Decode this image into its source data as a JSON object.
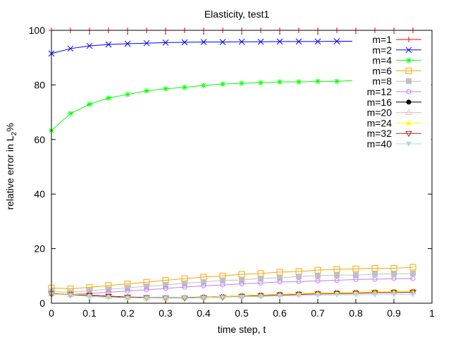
{
  "chart_data": {
    "type": "line",
    "title": "Elasticity, test1",
    "xlabel": "time step, t",
    "ylabel": "relative error in L",
    "ylabel_subscript": "2",
    "ylabel_suffix": "%",
    "xlim": [
      0,
      1
    ],
    "ylim": [
      0,
      100
    ],
    "xticks": [
      "0",
      "0.1",
      "0.2",
      "0.3",
      "0.4",
      "0.5",
      "0.6",
      "0.7",
      "0.8",
      "0.9",
      "1"
    ],
    "yticks": [
      "0",
      "20",
      "40",
      "60",
      "80",
      "100"
    ],
    "grid": false,
    "legend_position": "top-right",
    "x": [
      0,
      0.05,
      0.1,
      0.15,
      0.2,
      0.25,
      0.3,
      0.35,
      0.4,
      0.45,
      0.5,
      0.55,
      0.6,
      0.65,
      0.7,
      0.75,
      0.8,
      0.85,
      0.9,
      0.95
    ],
    "series": [
      {
        "name": "m=1",
        "color": "#ff0000",
        "marker": "plus",
        "values": [
          100,
          100,
          100,
          100,
          100,
          100,
          100,
          100,
          100,
          100,
          100,
          100,
          100,
          100,
          100,
          100,
          100,
          100,
          100,
          100
        ]
      },
      {
        "name": "m=2",
        "color": "#0000ff",
        "marker": "cross",
        "values": [
          91.5,
          93.3,
          94.3,
          94.8,
          95.1,
          95.3,
          95.5,
          95.6,
          95.7,
          95.7,
          95.8,
          95.8,
          95.9,
          95.9,
          95.9,
          96.0,
          96.0,
          96.1,
          96.1,
          96.1
        ]
      },
      {
        "name": "m=4",
        "color": "#00ff00",
        "marker": "star",
        "values": [
          63.3,
          69.5,
          72.9,
          75.2,
          76.5,
          77.8,
          78.6,
          79.1,
          79.8,
          80.3,
          80.6,
          80.8,
          81.1,
          81.1,
          81.3,
          81.3,
          81.7,
          81.9,
          82.0,
          82.1
        ]
      },
      {
        "name": "m=6",
        "color": "#ffa500",
        "marker": "square-open",
        "values": [
          5.6,
          5.3,
          5.8,
          6.5,
          7.1,
          7.7,
          8.4,
          9.0,
          9.6,
          10.0,
          10.6,
          10.9,
          11.4,
          11.6,
          12.1,
          12.4,
          12.6,
          12.8,
          12.8,
          13.2
        ]
      },
      {
        "name": "m=8",
        "color": "#c0c0c0",
        "marker": "square-filled",
        "values": [
          4.3,
          4.0,
          4.6,
          5.1,
          5.7,
          6.2,
          6.7,
          7.3,
          7.8,
          8.4,
          8.5,
          9.1,
          9.3,
          9.8,
          10.1,
          10.3,
          10.3,
          10.7,
          10.8,
          10.9
        ]
      },
      {
        "name": "m=12",
        "color": "#c080ff",
        "marker": "circle-open",
        "values": [
          3.4,
          3.3,
          3.6,
          4.0,
          4.5,
          4.9,
          5.4,
          5.9,
          6.4,
          6.7,
          7.1,
          7.4,
          7.8,
          7.9,
          8.2,
          8.4,
          8.7,
          8.8,
          9.0,
          9.0
        ]
      },
      {
        "name": "m=16",
        "color": "#000000",
        "marker": "circle-filled",
        "values": [
          3.6,
          3.3,
          3.0,
          2.6,
          2.3,
          2.1,
          2.0,
          2.1,
          2.3,
          2.5,
          2.8,
          3.0,
          3.3,
          3.5,
          3.7,
          3.9,
          4.0,
          4.1,
          4.2,
          4.3
        ]
      },
      {
        "name": "m=20",
        "color": "#ffb0b0",
        "marker": "triangle-open",
        "values": [
          3.5,
          3.2,
          2.9,
          2.5,
          2.2,
          2.0,
          1.9,
          2.0,
          2.2,
          2.4,
          2.7,
          2.9,
          3.2,
          3.4,
          3.6,
          3.8,
          3.9,
          4.0,
          4.1,
          4.2
        ]
      },
      {
        "name": "m=24",
        "color": "#ffff00",
        "marker": "triangle-filled",
        "values": [
          3.8,
          3.4,
          2.9,
          2.5,
          2.2,
          2.0,
          1.9,
          2.0,
          2.2,
          2.5,
          2.8,
          3.0,
          3.3,
          3.6,
          3.8,
          3.9,
          4.1,
          4.2,
          4.3,
          4.4
        ]
      },
      {
        "name": "m=32",
        "color": "#b22222",
        "marker": "itriangle-open",
        "values": [
          3.4,
          3.1,
          2.8,
          2.5,
          2.2,
          2.0,
          1.9,
          1.9,
          2.0,
          2.2,
          2.5,
          2.7,
          3.0,
          3.2,
          3.4,
          3.5,
          3.6,
          3.8,
          3.9,
          4.0
        ]
      },
      {
        "name": "m=40",
        "color": "#add8e6",
        "marker": "itriangle-filled",
        "values": [
          3.4,
          3.0,
          2.5,
          2.1,
          2.0,
          1.9,
          1.9,
          2.0,
          2.0,
          2.2,
          2.4,
          2.5,
          2.7,
          2.8,
          2.9,
          3.0,
          3.1,
          3.1,
          3.2,
          3.2
        ]
      }
    ]
  }
}
